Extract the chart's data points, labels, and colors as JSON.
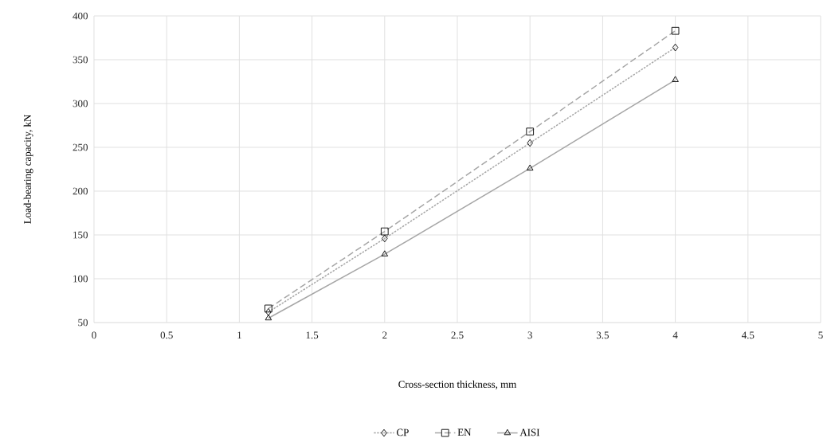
{
  "chart_data": {
    "type": "line",
    "xlabel": "Cross-section thickness, mm",
    "ylabel": "Load-bearing capacity, kN",
    "x": [
      1.2,
      2,
      3,
      4
    ],
    "series": [
      {
        "name": "CP",
        "color": "#a6a6a6",
        "line_style": "dotted",
        "marker": "diamond",
        "values": [
          62,
          146,
          255,
          364
        ]
      },
      {
        "name": "EN",
        "color": "#a6a6a6",
        "line_style": "dashed",
        "marker": "square",
        "values": [
          66,
          154,
          268,
          383
        ]
      },
      {
        "name": "AISI",
        "color": "#a6a6a6",
        "line_style": "solid",
        "marker": "triangle",
        "values": [
          55,
          128,
          226,
          327
        ]
      }
    ],
    "xlim": [
      0,
      5
    ],
    "ylim": [
      50,
      400
    ],
    "xticks": [
      0,
      0.5,
      1,
      1.5,
      2,
      2.5,
      3,
      3.5,
      4,
      4.5,
      5
    ],
    "yticks": [
      50,
      100,
      150,
      200,
      250,
      300,
      350,
      400
    ],
    "grid": true,
    "legend": "bottom"
  }
}
